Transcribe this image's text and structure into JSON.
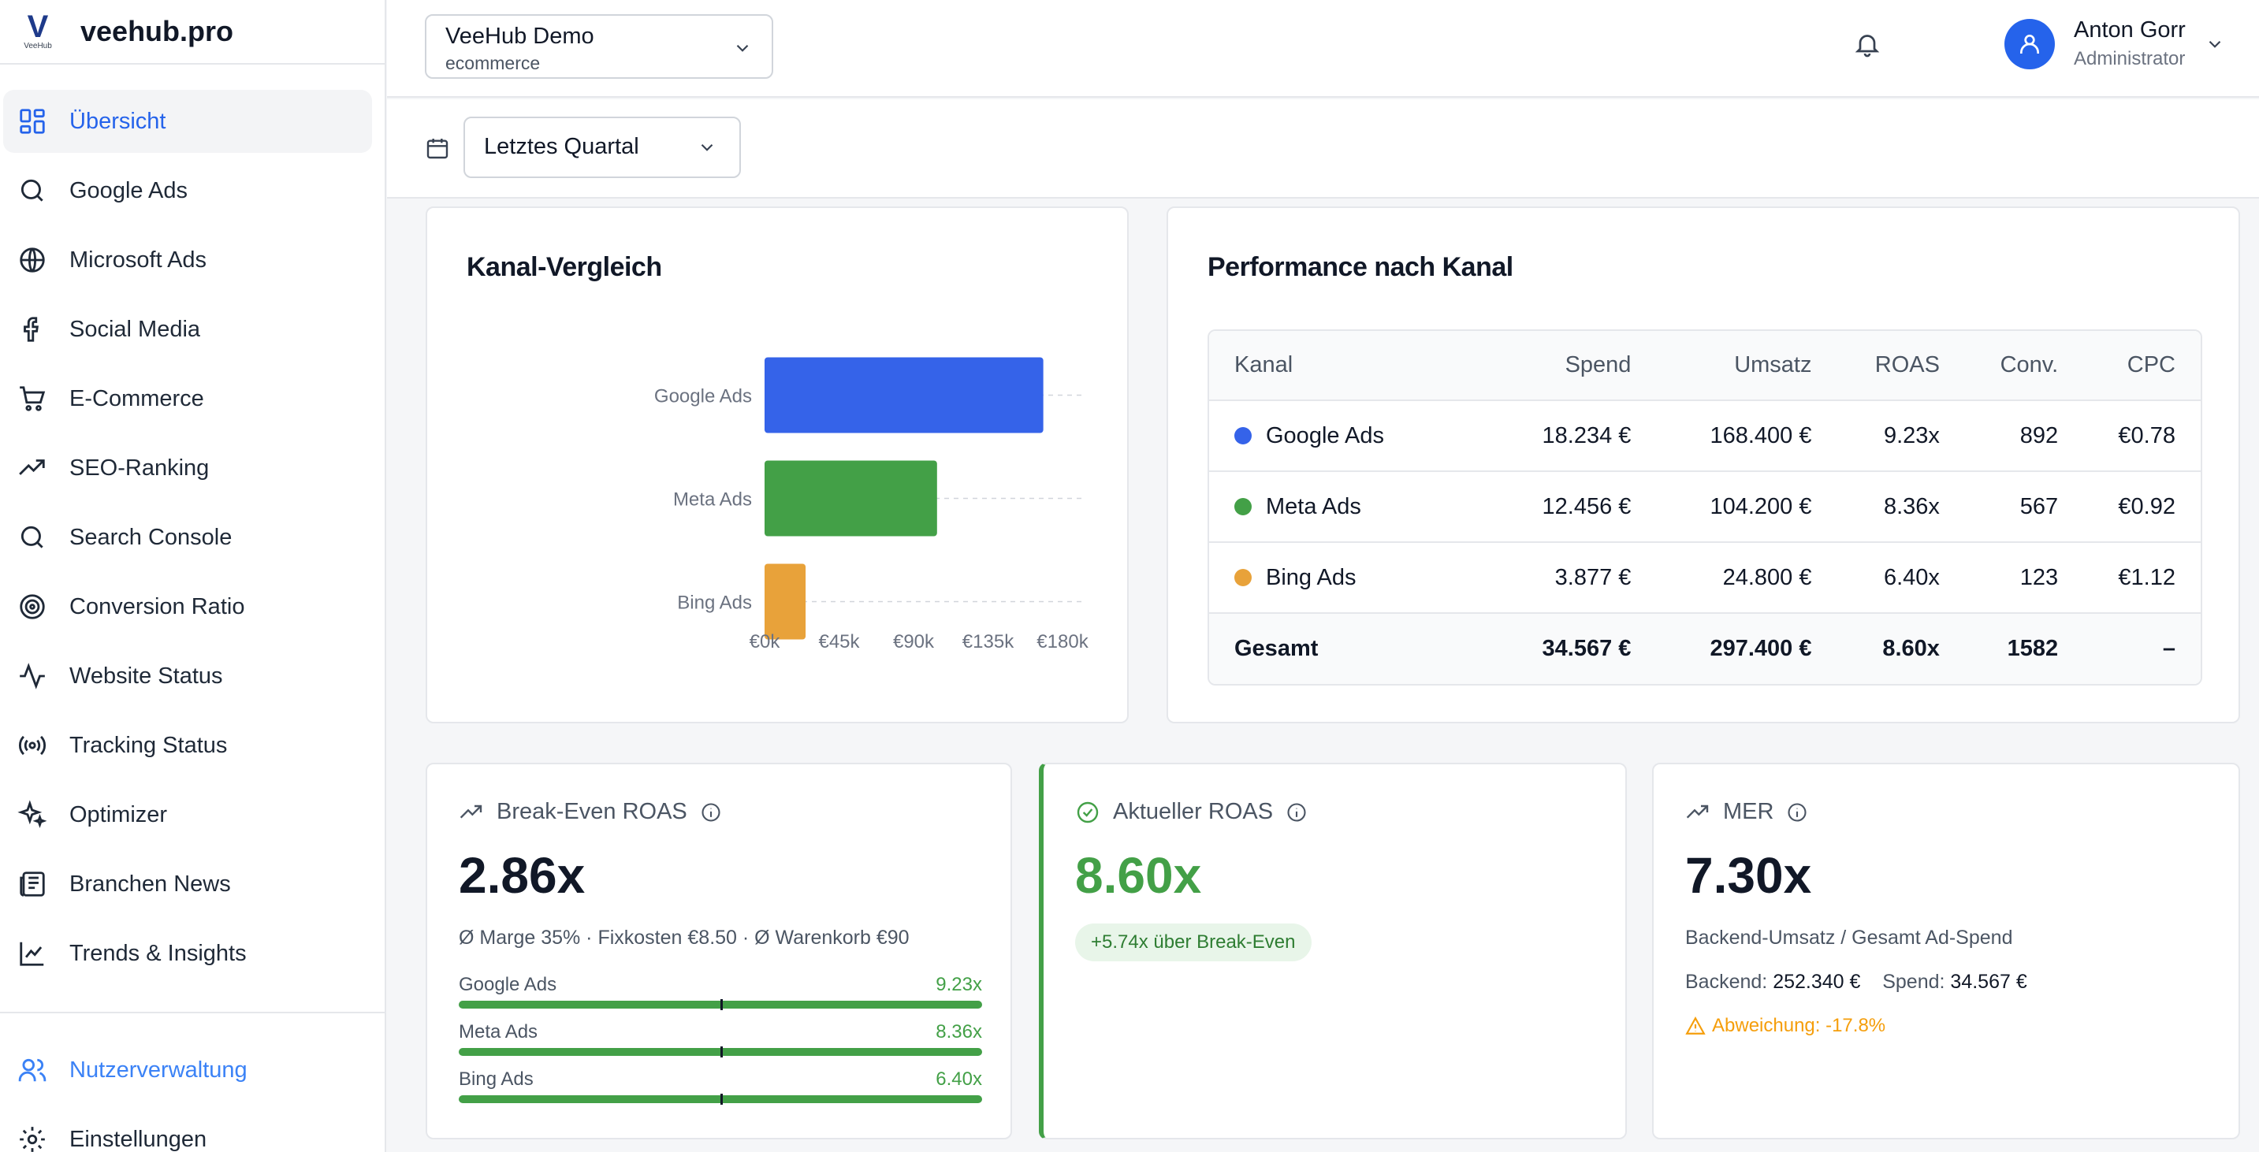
{
  "brand": {
    "logo_letter": "V",
    "logo_sub": "VeeHub",
    "name": "veehub.pro"
  },
  "sidebar": {
    "items": [
      {
        "label": "Übersicht",
        "icon": "dashboard-icon"
      },
      {
        "label": "Google Ads",
        "icon": "search-icon"
      },
      {
        "label": "Microsoft Ads",
        "icon": "globe-icon"
      },
      {
        "label": "Social Media",
        "icon": "facebook-icon"
      },
      {
        "label": "E-Commerce",
        "icon": "cart-icon"
      },
      {
        "label": "SEO-Ranking",
        "icon": "trending-up-icon"
      },
      {
        "label": "Search Console",
        "icon": "search-icon"
      },
      {
        "label": "Conversion Ratio",
        "icon": "target-icon"
      },
      {
        "label": "Website Status",
        "icon": "activity-icon"
      },
      {
        "label": "Tracking Status",
        "icon": "radio-icon"
      },
      {
        "label": "Optimizer",
        "icon": "sparkles-icon"
      },
      {
        "label": "Branchen News",
        "icon": "newspaper-icon"
      },
      {
        "label": "Trends & Insights",
        "icon": "line-chart-icon"
      }
    ],
    "bottom": [
      {
        "label": "Nutzerverwaltung",
        "icon": "users-icon"
      },
      {
        "label": "Einstellungen",
        "icon": "gear-icon"
      }
    ]
  },
  "topbar": {
    "account_name": "VeeHub Demo",
    "account_type": "ecommerce",
    "user_name": "Anton Gorr",
    "user_role": "Administrator"
  },
  "filter": {
    "period": "Letztes Quartal"
  },
  "colors": {
    "google": "#3563e9",
    "meta": "#43a047",
    "bing": "#e8a23a",
    "accent": "#2563eb"
  },
  "chart_card": {
    "title": "Kanal-Vergleich"
  },
  "chart_data": {
    "type": "bar",
    "orientation": "horizontal",
    "title": "Kanal-Vergleich",
    "categories": [
      "Google Ads",
      "Meta Ads",
      "Bing Ads"
    ],
    "values": [
      168400,
      104200,
      24800
    ],
    "x_ticks": [
      "€0k",
      "€45k",
      "€90k",
      "€135k",
      "€180k"
    ],
    "xlim": [
      0,
      180000
    ],
    "grid": "dashed horizontal"
  },
  "table_card": {
    "title": "Performance nach Kanal",
    "headers": [
      "Kanal",
      "Spend",
      "Umsatz",
      "ROAS",
      "Conv.",
      "CPC"
    ],
    "rows": [
      {
        "kanal": "Google Ads",
        "spend": "18.234 €",
        "umsatz": "168.400 €",
        "roas": "9.23x",
        "conv": "892",
        "cpc": "€0.78"
      },
      {
        "kanal": "Meta Ads",
        "spend": "12.456 €",
        "umsatz": "104.200 €",
        "roas": "8.36x",
        "conv": "567",
        "cpc": "€0.92"
      },
      {
        "kanal": "Bing Ads",
        "spend": "3.877 €",
        "umsatz": "24.800 €",
        "roas": "6.40x",
        "conv": "123",
        "cpc": "€1.12"
      }
    ],
    "total": {
      "kanal": "Gesamt",
      "spend": "34.567 €",
      "umsatz": "297.400 €",
      "roas": "8.60x",
      "conv": "1582",
      "cpc": "–"
    }
  },
  "kpi_break_even": {
    "title": "Break-Even ROAS",
    "value": "2.86x",
    "subtitle": "Ø Marge 35% · Fixkosten €8.50 · Ø Warenkorb €90",
    "bars": [
      {
        "label": "Google Ads",
        "value": "9.23x"
      },
      {
        "label": "Meta Ads",
        "value": "8.36x"
      },
      {
        "label": "Bing Ads",
        "value": "6.40x"
      }
    ]
  },
  "kpi_current": {
    "title": "Aktueller ROAS",
    "value": "8.60x",
    "badge": "+5.74x über Break-Even"
  },
  "kpi_mer": {
    "title": "MER",
    "value": "7.30x",
    "subtitle": "Backend-Umsatz / Gesamt Ad-Spend",
    "backend_label": "Backend:",
    "backend_value": "252.340 €",
    "spend_label": "Spend:",
    "spend_value": "34.567 €",
    "warning": "Abweichung: -17.8%"
  }
}
